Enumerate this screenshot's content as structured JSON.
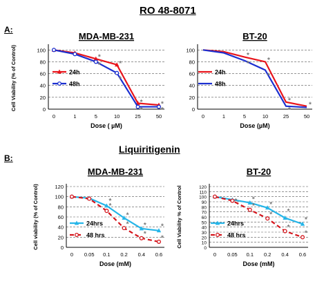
{
  "figure_title": "RO 48-8071",
  "section_a_label": "A:",
  "section_b_label": "B:",
  "section_b_title": "Liquiritigenin",
  "colors": {
    "red": "#e8141b",
    "blue": "#1b2fd0",
    "cyan": "#25b5e8",
    "darkred": "#d4141b",
    "star": "#777777"
  },
  "chart_data": [
    {
      "type": "line",
      "title": "MDA-MB-231",
      "xlabel": "Dose ( µM)",
      "ylabel": "Cell Viability (% of Control)",
      "categories": [
        "0",
        "1",
        "5",
        "10",
        "25",
        "50"
      ],
      "yticks": [
        "0",
        "20",
        "40",
        "60",
        "80",
        "100"
      ],
      "ylim": [
        0,
        105
      ],
      "grid": "horizontal dashed",
      "legend_position": "left-middle",
      "series": [
        {
          "name": "24h",
          "values": [
            100,
            95,
            85,
            75,
            10,
            7
          ]
        },
        {
          "name": "48h",
          "values": [
            100,
            93,
            80,
            61,
            4,
            4
          ]
        }
      ],
      "significance": [
        {
          "x": 2,
          "y": 89,
          "label": "*"
        },
        {
          "x": 2,
          "y": 76,
          "label": "*"
        },
        {
          "x": 3,
          "y": 78,
          "label": "*"
        },
        {
          "x": 3,
          "y": 52,
          "label": "*"
        },
        {
          "x": 4,
          "y": 13,
          "label": "*"
        },
        {
          "x": 4,
          "y": 0,
          "label": "*"
        },
        {
          "x": 5,
          "y": 10,
          "label": "*"
        },
        {
          "x": 5,
          "y": 0,
          "label": "*"
        }
      ]
    },
    {
      "type": "line",
      "title": "BT-20",
      "xlabel": "Dose (µM)",
      "ylabel": "",
      "categories": [
        "0",
        "1",
        "5",
        "10",
        "25",
        "50"
      ],
      "yticks": [
        "0",
        "20",
        "40",
        "60",
        "80",
        "100"
      ],
      "ylim": [
        0,
        105
      ],
      "grid": "horizontal dashed",
      "legend_position": "left-middle",
      "series": [
        {
          "name": "24h",
          "values": [
            100,
            97,
            88,
            80,
            12,
            5
          ]
        },
        {
          "name": "48h",
          "values": [
            100,
            95,
            82,
            66,
            5,
            3
          ]
        }
      ],
      "significance": [
        {
          "x": 2,
          "y": 92,
          "label": "*"
        },
        {
          "x": 2,
          "y": 78,
          "label": "*"
        },
        {
          "x": 3,
          "y": 84,
          "label": "*"
        },
        {
          "x": 3,
          "y": 58,
          "label": "*"
        },
        {
          "x": 4,
          "y": 16,
          "label": "*"
        },
        {
          "x": 4,
          "y": 0,
          "label": "*"
        },
        {
          "x": 5,
          "y": 9,
          "label": "*"
        }
      ]
    },
    {
      "type": "line",
      "title": "MDA-MB-231",
      "xlabel": "Dose (mM)",
      "ylabel": "Cell viability (% of Control)",
      "categories": [
        "0",
        "0.05",
        "0.1",
        "0.2",
        "0.4",
        "0.6"
      ],
      "yticks": [
        "0",
        "20",
        "40",
        "60",
        "80",
        "100",
        "120"
      ],
      "ylim": [
        0,
        120
      ],
      "grid": "horizontal dashed",
      "legend_position": "left-middle",
      "series": [
        {
          "name": "24hrs",
          "values": [
            100,
            97,
            82,
            58,
            37,
            33
          ]
        },
        {
          "name": "48 hrs",
          "values": [
            100,
            96,
            72,
            38,
            18,
            11
          ]
        }
      ],
      "significance": [
        {
          "x": 2,
          "y": 93,
          "label": "*"
        },
        {
          "x": 2,
          "y": 83,
          "label": "*"
        },
        {
          "x": 3,
          "y": 65,
          "label": "*"
        },
        {
          "x": 3,
          "y": 47,
          "label": "*"
        },
        {
          "x": 4,
          "y": 45,
          "label": "*"
        },
        {
          "x": 4,
          "y": 28,
          "label": "*"
        },
        {
          "x": 5,
          "y": 43,
          "label": "*"
        },
        {
          "x": 5,
          "y": 20,
          "label": "*"
        }
      ]
    },
    {
      "type": "line",
      "title": "BT-20",
      "xlabel": "Dose (mM)",
      "ylabel": "Cell Viability % of Control",
      "categories": [
        "0",
        "0.05",
        "0.1",
        "0.2",
        "0.4",
        "0.6"
      ],
      "yticks": [
        "0",
        "10",
        "20",
        "30",
        "40",
        "50",
        "60",
        "70",
        "80",
        "90",
        "100",
        "110",
        "120"
      ],
      "ylim": [
        0,
        120
      ],
      "grid": "horizontal dashed",
      "legend_position": "left-middle",
      "series": [
        {
          "name": "24hrs",
          "values": [
            100,
            94,
            88,
            78,
            58,
            46
          ]
        },
        {
          "name": "48 hrs",
          "values": [
            100,
            92,
            74,
            57,
            32,
            20
          ]
        }
      ],
      "significance": [
        {
          "x": 1,
          "y": 93,
          "label": "*"
        },
        {
          "x": 2,
          "y": 96,
          "label": "*"
        },
        {
          "x": 2,
          "y": 83,
          "label": "*"
        },
        {
          "x": 3,
          "y": 86,
          "label": "*"
        },
        {
          "x": 3,
          "y": 66,
          "label": "*"
        },
        {
          "x": 4,
          "y": 72,
          "label": "*"
        },
        {
          "x": 4,
          "y": 41,
          "label": "*"
        },
        {
          "x": 5,
          "y": 56,
          "label": "*"
        },
        {
          "x": 5,
          "y": 29,
          "label": "*"
        }
      ]
    }
  ]
}
